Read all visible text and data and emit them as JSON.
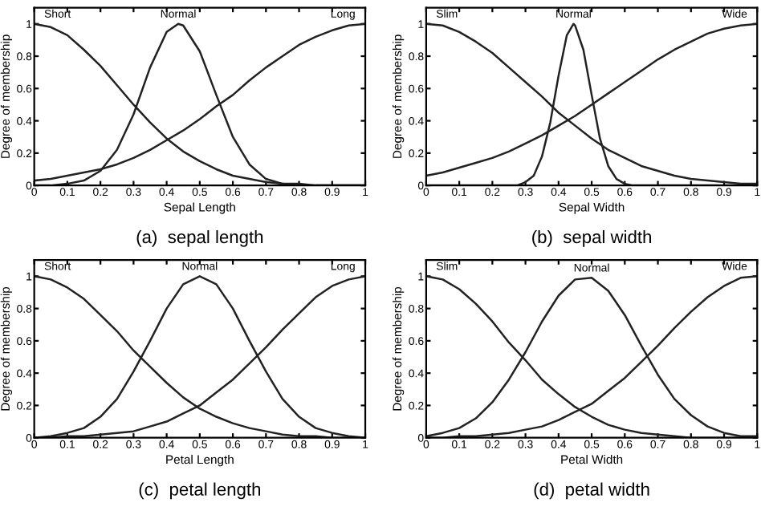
{
  "chart_data": [
    {
      "type": "line",
      "title": "(a)  sepal length",
      "xlabel": "Sepal Length",
      "ylabel": "Degree of membership",
      "x": [
        0,
        0.05,
        0.1,
        0.15,
        0.2,
        0.25,
        0.3,
        0.35,
        0.4,
        0.45,
        0.5,
        0.55,
        0.6,
        0.65,
        0.7,
        0.75,
        0.8,
        0.85,
        0.9,
        0.95,
        1
      ],
      "xlim": [
        0,
        1
      ],
      "ylim": [
        0,
        1.1
      ],
      "xticks": [
        0,
        0.1,
        0.2,
        0.3,
        0.4,
        0.5,
        0.6,
        0.7,
        0.8,
        0.9,
        1
      ],
      "yticks": [
        0,
        0.2,
        0.4,
        0.6,
        0.8,
        1
      ],
      "grid": false,
      "legend": false,
      "series": [
        {
          "name": "Short",
          "color": "#222222",
          "values": [
            1,
            0.98,
            0.93,
            0.84,
            0.74,
            0.62,
            0.5,
            0.39,
            0.29,
            0.21,
            0.15,
            0.1,
            0.06,
            0.04,
            0.02,
            0.01,
            0.01,
            0,
            0,
            0,
            0
          ]
        },
        {
          "name": "Normal",
          "color": "#222222",
          "x": [
            0,
            0.05,
            0.1,
            0.15,
            0.2,
            0.25,
            0.3,
            0.35,
            0.4,
            0.435,
            0.45,
            0.5,
            0.55,
            0.6,
            0.65,
            0.7,
            0.75,
            0.8,
            1
          ],
          "values": [
            0,
            0,
            0.01,
            0.03,
            0.09,
            0.22,
            0.44,
            0.73,
            0.95,
            1,
            0.99,
            0.83,
            0.56,
            0.3,
            0.13,
            0.04,
            0.01,
            0,
            0
          ]
        },
        {
          "name": "Long",
          "color": "#222222",
          "values": [
            0.03,
            0.04,
            0.06,
            0.08,
            0.1,
            0.13,
            0.17,
            0.22,
            0.28,
            0.34,
            0.41,
            0.49,
            0.56,
            0.65,
            0.73,
            0.8,
            0.87,
            0.92,
            0.96,
            0.99,
            1
          ]
        }
      ]
    },
    {
      "type": "line",
      "title": "(b)  sepal width",
      "xlabel": "Sepal Width",
      "ylabel": "Degree of membership",
      "x": [
        0,
        0.05,
        0.1,
        0.15,
        0.2,
        0.25,
        0.3,
        0.35,
        0.4,
        0.45,
        0.5,
        0.55,
        0.6,
        0.65,
        0.7,
        0.75,
        0.8,
        0.85,
        0.9,
        0.95,
        1
      ],
      "xlim": [
        0,
        1
      ],
      "ylim": [
        0,
        1.1
      ],
      "xticks": [
        0,
        0.1,
        0.2,
        0.3,
        0.4,
        0.5,
        0.6,
        0.7,
        0.8,
        0.9,
        1
      ],
      "yticks": [
        0,
        0.2,
        0.4,
        0.6,
        0.8,
        1
      ],
      "grid": false,
      "legend": false,
      "series": [
        {
          "name": "Slim",
          "color": "#222222",
          "values": [
            1,
            0.99,
            0.95,
            0.89,
            0.82,
            0.73,
            0.64,
            0.55,
            0.45,
            0.37,
            0.29,
            0.22,
            0.17,
            0.12,
            0.09,
            0.06,
            0.04,
            0.03,
            0.02,
            0.01,
            0.01
          ]
        },
        {
          "name": "Normal",
          "color": "#222222",
          "x": [
            0,
            0.25,
            0.275,
            0.3,
            0.325,
            0.35,
            0.375,
            0.4,
            0.425,
            0.445,
            0.45,
            0.475,
            0.5,
            0.525,
            0.55,
            0.575,
            0.6,
            0.625,
            1
          ],
          "values": [
            0,
            0,
            0,
            0.02,
            0.06,
            0.18,
            0.39,
            0.68,
            0.93,
            1,
            0.99,
            0.84,
            0.56,
            0.29,
            0.12,
            0.04,
            0.01,
            0,
            0
          ]
        },
        {
          "name": "Wide",
          "color": "#222222",
          "values": [
            0.06,
            0.08,
            0.11,
            0.14,
            0.17,
            0.21,
            0.26,
            0.31,
            0.37,
            0.43,
            0.5,
            0.57,
            0.64,
            0.71,
            0.78,
            0.84,
            0.89,
            0.94,
            0.97,
            0.99,
            1
          ]
        }
      ]
    },
    {
      "type": "line",
      "title": "(c)  petal length",
      "xlabel": "Petal Length",
      "ylabel": "Degree of membership",
      "x": [
        0,
        0.05,
        0.1,
        0.15,
        0.2,
        0.25,
        0.3,
        0.35,
        0.4,
        0.45,
        0.5,
        0.55,
        0.6,
        0.65,
        0.7,
        0.75,
        0.8,
        0.85,
        0.9,
        0.95,
        1
      ],
      "xlim": [
        0,
        1
      ],
      "ylim": [
        0,
        1.1
      ],
      "xticks": [
        0,
        0.1,
        0.2,
        0.3,
        0.4,
        0.5,
        0.6,
        0.7,
        0.8,
        0.9,
        1
      ],
      "yticks": [
        0,
        0.2,
        0.4,
        0.6,
        0.8,
        1
      ],
      "grid": false,
      "legend": false,
      "series": [
        {
          "name": "Short",
          "color": "#222222",
          "values": [
            1,
            0.98,
            0.93,
            0.86,
            0.76,
            0.66,
            0.54,
            0.44,
            0.34,
            0.25,
            0.18,
            0.13,
            0.09,
            0.06,
            0.04,
            0.02,
            0.01,
            0.01,
            0,
            0,
            0
          ]
        },
        {
          "name": "Normal",
          "color": "#222222",
          "values": [
            0,
            0.01,
            0.03,
            0.06,
            0.13,
            0.24,
            0.41,
            0.6,
            0.8,
            0.95,
            1,
            0.95,
            0.8,
            0.6,
            0.41,
            0.24,
            0.13,
            0.06,
            0.03,
            0.01,
            0
          ]
        },
        {
          "name": "Long",
          "color": "#222222",
          "values": [
            0,
            0,
            0.01,
            0.01,
            0.02,
            0.03,
            0.04,
            0.07,
            0.1,
            0.15,
            0.2,
            0.28,
            0.36,
            0.46,
            0.56,
            0.67,
            0.77,
            0.87,
            0.94,
            0.98,
            1
          ]
        }
      ]
    },
    {
      "type": "line",
      "title": "(d)  petal width",
      "xlabel": "Petal Width",
      "ylabel": "Degree of membership",
      "x": [
        0,
        0.05,
        0.1,
        0.15,
        0.2,
        0.25,
        0.3,
        0.35,
        0.4,
        0.45,
        0.5,
        0.55,
        0.6,
        0.65,
        0.7,
        0.75,
        0.8,
        0.85,
        0.9,
        0.95,
        1
      ],
      "xlim": [
        0,
        1
      ],
      "ylim": [
        0,
        1.1
      ],
      "xticks": [
        0,
        0.1,
        0.2,
        0.3,
        0.4,
        0.5,
        0.6,
        0.7,
        0.8,
        0.9,
        1
      ],
      "yticks": [
        0,
        0.2,
        0.4,
        0.6,
        0.8,
        1
      ],
      "grid": false,
      "legend": false,
      "series": [
        {
          "name": "Slim",
          "color": "#222222",
          "values": [
            1,
            0.98,
            0.92,
            0.83,
            0.72,
            0.59,
            0.48,
            0.36,
            0.27,
            0.19,
            0.13,
            0.08,
            0.05,
            0.03,
            0.02,
            0.01,
            0,
            0,
            0,
            0,
            0
          ]
        },
        {
          "name": "Normal",
          "color": "#222222",
          "values": [
            0.01,
            0.03,
            0.06,
            0.12,
            0.22,
            0.36,
            0.53,
            0.72,
            0.88,
            0.98,
            0.99,
            0.91,
            0.76,
            0.57,
            0.39,
            0.24,
            0.14,
            0.07,
            0.03,
            0.01,
            0.01
          ]
        },
        {
          "name": "Wide",
          "color": "#222222",
          "values": [
            0,
            0,
            0.01,
            0.01,
            0.02,
            0.03,
            0.05,
            0.07,
            0.11,
            0.16,
            0.21,
            0.29,
            0.37,
            0.47,
            0.57,
            0.68,
            0.78,
            0.87,
            0.94,
            0.99,
            1
          ]
        }
      ]
    }
  ]
}
